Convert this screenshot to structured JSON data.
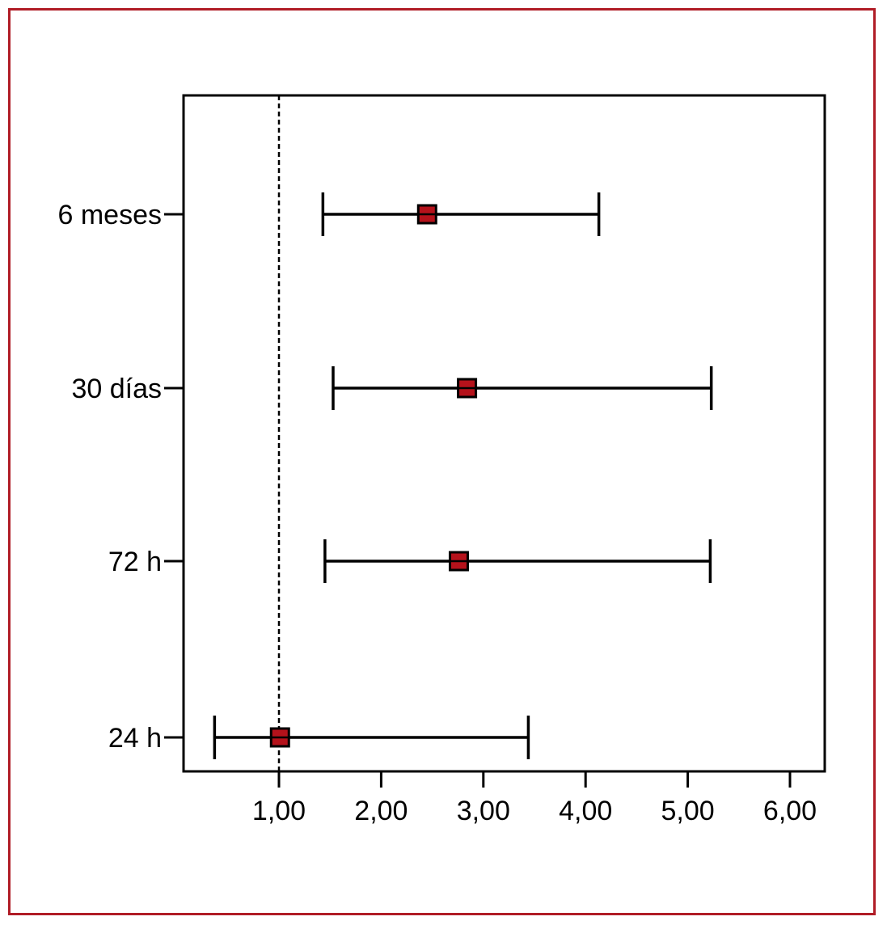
{
  "colors": {
    "frame": "#b01c26",
    "marker_fill": "#b5121b",
    "line": "#000000"
  },
  "chart_data": {
    "type": "forest",
    "title": "",
    "xlabel": "",
    "ylabel": "",
    "xlim": [
      0.1,
      6.4
    ],
    "xticks": [
      1,
      2,
      3,
      4,
      5,
      6
    ],
    "xtick_labels": [
      "1,00",
      "2,00",
      "3,00",
      "4,00",
      "5,00",
      "6,00"
    ],
    "reference_line": 1.0,
    "reference_line_style": "dashed",
    "grid": false,
    "rows": [
      {
        "label": "6 meses",
        "estimate": 2.45,
        "lower": 1.43,
        "upper": 4.13
      },
      {
        "label": "30 días",
        "estimate": 2.84,
        "lower": 1.53,
        "upper": 5.23
      },
      {
        "label": "72 h",
        "estimate": 2.76,
        "lower": 1.45,
        "upper": 5.22
      },
      {
        "label": "24 h",
        "estimate": 1.01,
        "lower": 0.37,
        "upper": 3.44
      }
    ]
  }
}
